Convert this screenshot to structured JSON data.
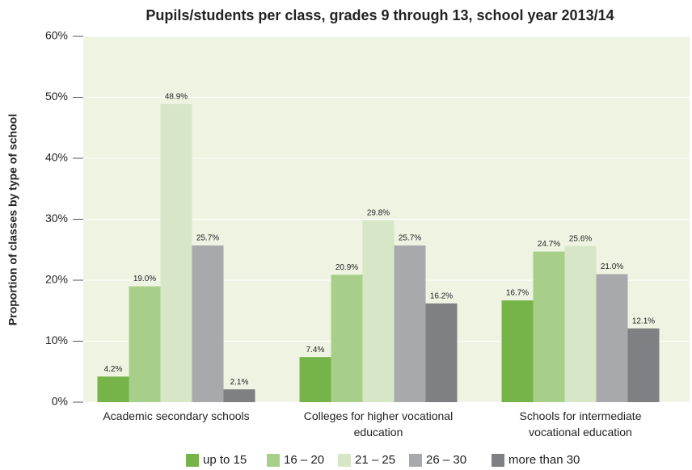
{
  "chart_data": {
    "type": "bar",
    "title": "Pupils/students per class, grades 9 through 13, school year 2013/14",
    "y_label": "Proportion of classes by type of school",
    "categories": [
      "Academic secondary schools",
      "Colleges for higher vocational education",
      "Schools for intermediate vocational education"
    ],
    "series": [
      {
        "name": "up to 15",
        "color": "#76b44a",
        "values": [
          4.2,
          7.4,
          16.7
        ],
        "value_labels": [
          "4.2%",
          "7.4%",
          "16.7%"
        ]
      },
      {
        "name": "16 – 20",
        "color": "#a8cf8a",
        "values": [
          19.0,
          20.9,
          24.7
        ],
        "value_labels": [
          "19.0%",
          "20.9%",
          "24.7%"
        ]
      },
      {
        "name": "21 – 25",
        "color": "#d6e6c6",
        "values": [
          48.9,
          29.8,
          25.6
        ],
        "value_labels": [
          "48.9%",
          "29.8%",
          "25.6%"
        ]
      },
      {
        "name": "26 – 30",
        "color": "#a8a9ad",
        "values": [
          25.7,
          25.7,
          21.0
        ],
        "value_labels": [
          "25.7%",
          "25.7%",
          "21.0%"
        ]
      },
      {
        "name": "more than 30",
        "color": "#7f8083",
        "values": [
          2.1,
          16.2,
          12.1
        ],
        "value_labels": [
          "2.1%",
          "16.2%",
          "12.1%"
        ]
      }
    ],
    "ylim": [
      0,
      60
    ],
    "yticks": [
      {
        "value": 0,
        "label": "0%"
      },
      {
        "value": 10,
        "label": "10%"
      },
      {
        "value": 20,
        "label": "20%"
      },
      {
        "value": 30,
        "label": "30%"
      },
      {
        "value": 40,
        "label": "40%"
      },
      {
        "value": 50,
        "label": "50%"
      },
      {
        "value": 60,
        "label": "60%"
      }
    ],
    "grid": true
  }
}
